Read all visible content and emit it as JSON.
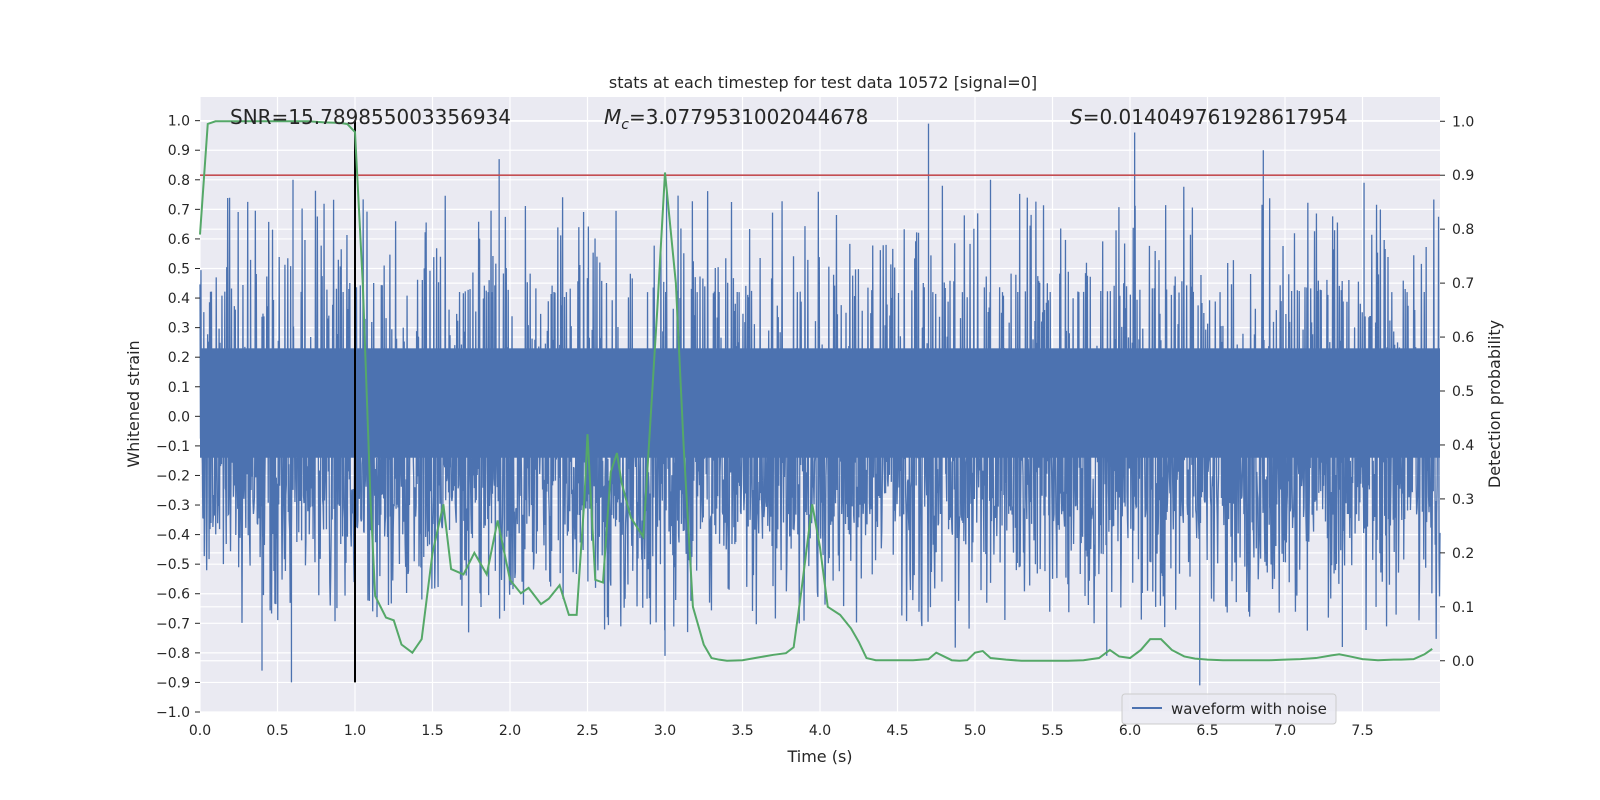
{
  "chart_data": {
    "type": "line",
    "title": "stats at each timestep for test data 10572 [signal=0]",
    "xlabel": "Time (s)",
    "ylabel": "Whitened strain",
    "y2label": "Detection probability",
    "xlim": [
      0.0,
      8.0
    ],
    "ylim": [
      -1.0,
      1.08
    ],
    "y2lim": [
      -0.095,
      1.045
    ],
    "xticks": [
      "0.0",
      "0.5",
      "1.0",
      "1.5",
      "2.0",
      "2.5",
      "3.0",
      "3.5",
      "4.0",
      "4.5",
      "5.0",
      "5.5",
      "6.0",
      "6.5",
      "7.0",
      "7.5"
    ],
    "xtick_values": [
      0.0,
      0.5,
      1.0,
      1.5,
      2.0,
      2.5,
      3.0,
      3.5,
      4.0,
      4.5,
      5.0,
      5.5,
      6.0,
      6.5,
      7.0,
      7.5
    ],
    "yticks": [
      "−1.0",
      "−0.9",
      "−0.8",
      "−0.7",
      "−0.6",
      "−0.5",
      "−0.4",
      "−0.3",
      "−0.2",
      "−0.1",
      "0.0",
      "0.1",
      "0.2",
      "0.3",
      "0.4",
      "0.5",
      "0.6",
      "0.7",
      "0.8",
      "0.9",
      "1.0"
    ],
    "ytick_values": [
      -1.0,
      -0.9,
      -0.8,
      -0.7,
      -0.6,
      -0.5,
      -0.4,
      -0.3,
      -0.2,
      -0.1,
      0.0,
      0.1,
      0.2,
      0.3,
      0.4,
      0.5,
      0.6,
      0.7,
      0.8,
      0.9,
      1.0
    ],
    "y2ticks": [
      "0.0",
      "0.1",
      "0.2",
      "0.3",
      "0.4",
      "0.5",
      "0.6",
      "0.7",
      "0.8",
      "0.9",
      "1.0"
    ],
    "y2tick_values": [
      0.0,
      0.1,
      0.2,
      0.3,
      0.4,
      0.5,
      0.6,
      0.7,
      0.8,
      0.9,
      1.0
    ],
    "annotations": {
      "snr": "SNR=15.789855003356934",
      "mc_symbol": "M",
      "mc_sub": "c",
      "mc_value": "=3.0779531002044678",
      "s_symbol": "S",
      "s_value": "=0.014049761928617954"
    },
    "threshold": {
      "value": 0.9,
      "axis": "right",
      "color": "#c44e52"
    },
    "marker_line": {
      "x": 1.0,
      "y_from": -0.9,
      "y_to": 1.0,
      "color": "#000000"
    },
    "legend": {
      "label": "waveform with noise",
      "placement": "lower-right"
    },
    "colors": {
      "background": "#eaeaf2",
      "grid": "#ffffff",
      "waveform": "#4c72b0",
      "probability": "#55a868"
    },
    "series": [
      {
        "name": "waveform with noise",
        "axis": "left",
        "kind": "noise",
        "n_points": 2600,
        "noise_band": [
          -0.33,
          0.42
        ],
        "spikes": [
          {
            "x": 0.6,
            "y": 0.8
          },
          {
            "x": 0.59,
            "y": -0.9
          },
          {
            "x": 1.93,
            "y": 0.87
          },
          {
            "x": 3.01,
            "y": 0.76
          },
          {
            "x": 3.0,
            "y": -0.81
          },
          {
            "x": 4.7,
            "y": 0.99
          },
          {
            "x": 5.1,
            "y": 0.8
          },
          {
            "x": 6.03,
            "y": 0.96
          },
          {
            "x": 6.86,
            "y": 0.9
          },
          {
            "x": 7.51,
            "y": 0.79
          },
          {
            "x": 6.45,
            "y": -0.91
          },
          {
            "x": 0.4,
            "y": -0.86
          },
          {
            "x": 5.85,
            "y": -0.81
          },
          {
            "x": 7.37,
            "y": -0.78
          }
        ]
      },
      {
        "name": "Detection probability",
        "axis": "right",
        "x": [
          0.0,
          0.05,
          0.1,
          0.2,
          0.3,
          0.4,
          0.5,
          0.6,
          0.7,
          0.8,
          0.9,
          0.95,
          1.0,
          1.05,
          1.1,
          1.13,
          1.2,
          1.25,
          1.3,
          1.37,
          1.43,
          1.5,
          1.57,
          1.62,
          1.7,
          1.77,
          1.85,
          1.92,
          2.0,
          2.07,
          2.12,
          2.2,
          2.25,
          2.32,
          2.38,
          2.43,
          2.48,
          2.5,
          2.55,
          2.6,
          2.65,
          2.69,
          2.72,
          2.78,
          2.86,
          2.95,
          3.0,
          3.07,
          3.12,
          3.18,
          3.25,
          3.3,
          3.35,
          3.4,
          3.5,
          3.6,
          3.7,
          3.78,
          3.83,
          3.88,
          3.95,
          4.0,
          4.05,
          4.13,
          4.2,
          4.25,
          4.3,
          4.36,
          4.45,
          4.6,
          4.7,
          4.75,
          4.8,
          4.85,
          4.9,
          4.95,
          5.0,
          5.05,
          5.1,
          5.2,
          5.3,
          5.4,
          5.5,
          5.6,
          5.7,
          5.8,
          5.87,
          5.93,
          6.0,
          6.07,
          6.13,
          6.2,
          6.27,
          6.35,
          6.42,
          6.5,
          6.6,
          6.7,
          6.8,
          6.9,
          7.0,
          7.1,
          7.2,
          7.3,
          7.35,
          7.42,
          7.5,
          7.6,
          7.7,
          7.75,
          7.83,
          7.9,
          7.95
        ],
        "y": [
          0.79,
          0.995,
          1.0,
          1.0,
          1.0,
          1.0,
          1.0,
          1.0,
          1.0,
          0.998,
          0.997,
          0.995,
          0.98,
          0.7,
          0.3,
          0.12,
          0.08,
          0.075,
          0.03,
          0.015,
          0.04,
          0.2,
          0.29,
          0.17,
          0.16,
          0.2,
          0.16,
          0.26,
          0.15,
          0.125,
          0.135,
          0.105,
          0.115,
          0.14,
          0.085,
          0.085,
          0.3,
          0.42,
          0.15,
          0.145,
          0.35,
          0.385,
          0.33,
          0.265,
          0.23,
          0.65,
          0.905,
          0.7,
          0.4,
          0.1,
          0.03,
          0.005,
          0.002,
          0.0,
          0.001,
          0.006,
          0.011,
          0.014,
          0.025,
          0.13,
          0.29,
          0.21,
          0.1,
          0.085,
          0.06,
          0.035,
          0.005,
          0.001,
          0.001,
          0.001,
          0.003,
          0.015,
          0.008,
          0.001,
          0.0,
          0.001,
          0.015,
          0.018,
          0.005,
          0.002,
          0.0,
          0.0,
          0.0,
          0.0,
          0.001,
          0.005,
          0.02,
          0.008,
          0.005,
          0.02,
          0.04,
          0.04,
          0.02,
          0.008,
          0.004,
          0.002,
          0.001,
          0.001,
          0.001,
          0.001,
          0.002,
          0.003,
          0.005,
          0.01,
          0.012,
          0.008,
          0.003,
          0.001,
          0.002,
          0.002,
          0.003,
          0.012,
          0.022
        ]
      }
    ]
  }
}
